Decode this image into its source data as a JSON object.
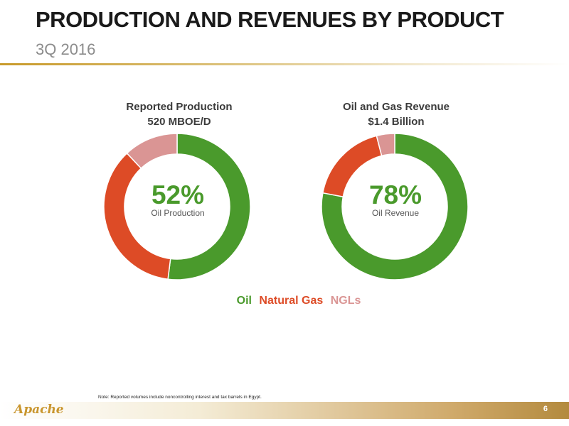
{
  "slide": {
    "title": "PRODUCTION AND REVENUES BY PRODUCT",
    "subtitle": "3Q 2016",
    "note": "Note: Reported volumes include noncontrolling interest and tax barrels in Egypt.",
    "logo_text": "Apache",
    "page_number": "6"
  },
  "colors": {
    "oil": "#4a9a2c",
    "natural_gas": "#dd4b26",
    "ngls": "#da9594"
  },
  "chart_data": [
    {
      "type": "pie",
      "title": "Reported Production",
      "subtitle": "520 MBOE/D",
      "center_value": "52%",
      "center_label": "Oil Production",
      "categories": [
        "Oil",
        "Natural Gas",
        "NGLs"
      ],
      "values": [
        52,
        36,
        12
      ]
    },
    {
      "type": "pie",
      "title": "Oil and Gas Revenue",
      "subtitle": "$1.4 Billion",
      "center_value": "78%",
      "center_label": "Oil Revenue",
      "categories": [
        "Oil",
        "Natural Gas",
        "NGLs"
      ],
      "values": [
        78,
        18,
        4
      ]
    }
  ],
  "legend": {
    "oil": "Oil",
    "natural_gas": "Natural Gas",
    "ngls": "NGLs"
  }
}
